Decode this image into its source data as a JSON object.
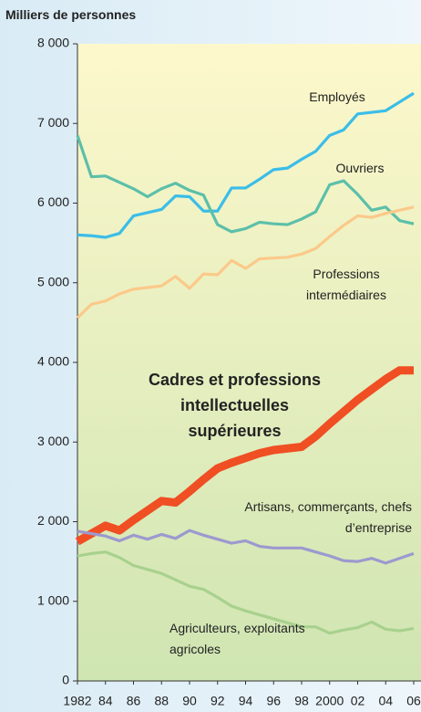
{
  "chart_data": {
    "type": "line",
    "title": "Milliers de personnes",
    "x": [
      1982,
      1983,
      1984,
      1985,
      1986,
      1987,
      1988,
      1989,
      1990,
      1991,
      1992,
      1993,
      1994,
      1995,
      1996,
      1997,
      1998,
      1999,
      2000,
      2001,
      2002,
      2003,
      2004,
      2005,
      2006
    ],
    "xlim": [
      1982,
      2006
    ],
    "xticks": [
      {
        "value": 1982,
        "label": "1982"
      },
      {
        "value": 1984,
        "label": "84"
      },
      {
        "value": 1986,
        "label": "86"
      },
      {
        "value": 1988,
        "label": "88"
      },
      {
        "value": 1990,
        "label": "90"
      },
      {
        "value": 1992,
        "label": "92"
      },
      {
        "value": 1994,
        "label": "94"
      },
      {
        "value": 1996,
        "label": "96"
      },
      {
        "value": 1998,
        "label": "98"
      },
      {
        "value": 2000,
        "label": "2000"
      },
      {
        "value": 2002,
        "label": "02"
      },
      {
        "value": 2004,
        "label": "04"
      },
      {
        "value": 2006,
        "label": "06"
      }
    ],
    "ylim": [
      0,
      8000
    ],
    "yticks": [
      0,
      {
        "value": 1000,
        "label": "1 000"
      },
      {
        "value": 2000,
        "label": "2 000"
      },
      {
        "value": 3000,
        "label": "3 000"
      },
      {
        "value": 4000,
        "label": "4 000"
      },
      {
        "value": 5000,
        "label": "5 000"
      },
      {
        "value": 6000,
        "label": "6 000"
      },
      {
        "value": 7000,
        "label": "7 000"
      },
      {
        "value": 8000,
        "label": "8 000"
      }
    ],
    "series": [
      {
        "name": "Employés",
        "color": "#3bbde8",
        "values": [
          5600,
          5590,
          5570,
          5620,
          5840,
          5880,
          5920,
          6090,
          6080,
          5900,
          5900,
          6190,
          6190,
          6300,
          6420,
          6440,
          6550,
          6650,
          6850,
          6920,
          7120,
          7140,
          7160,
          7270,
          7380
        ]
      },
      {
        "name": "Ouvriers",
        "color": "#5cbfa9",
        "values": [
          6850,
          6330,
          6340,
          6260,
          6180,
          6080,
          6180,
          6250,
          6160,
          6100,
          5730,
          5640,
          5680,
          5760,
          5740,
          5730,
          5800,
          5890,
          6230,
          6280,
          6110,
          5910,
          5950,
          5780,
          5740
        ]
      },
      {
        "name": "Professions intermédiaires",
        "color": "#fbc98a",
        "values": [
          4560,
          4730,
          4770,
          4860,
          4920,
          4940,
          4960,
          5080,
          4930,
          5110,
          5100,
          5280,
          5180,
          5300,
          5310,
          5320,
          5360,
          5430,
          5580,
          5720,
          5840,
          5820,
          5870,
          5910,
          5950
        ]
      },
      {
        "name": "Cadres et professions intellectuelles supérieures",
        "color": "#f04e23",
        "values": [
          1750,
          1850,
          1950,
          1890,
          2020,
          2140,
          2260,
          2240,
          2380,
          2530,
          2670,
          2740,
          2800,
          2860,
          2900,
          2920,
          2940,
          3070,
          3230,
          3380,
          3530,
          3660,
          3790,
          3900,
          3900
        ]
      },
      {
        "name": "Artisans, commerçants, chefs d’entreprise",
        "color": "#9d99cf",
        "values": [
          1880,
          1850,
          1820,
          1760,
          1830,
          1780,
          1840,
          1790,
          1890,
          1830,
          1780,
          1730,
          1760,
          1690,
          1670,
          1670,
          1670,
          1620,
          1570,
          1510,
          1500,
          1540,
          1480,
          1540,
          1600
        ]
      },
      {
        "name": "Agriculteurs, exploitants agricoles",
        "color": "#a9d18e",
        "values": [
          1570,
          1600,
          1620,
          1550,
          1450,
          1400,
          1350,
          1270,
          1190,
          1150,
          1050,
          940,
          880,
          830,
          780,
          730,
          680,
          680,
          600,
          640,
          670,
          740,
          650,
          630,
          660
        ]
      }
    ]
  }
}
